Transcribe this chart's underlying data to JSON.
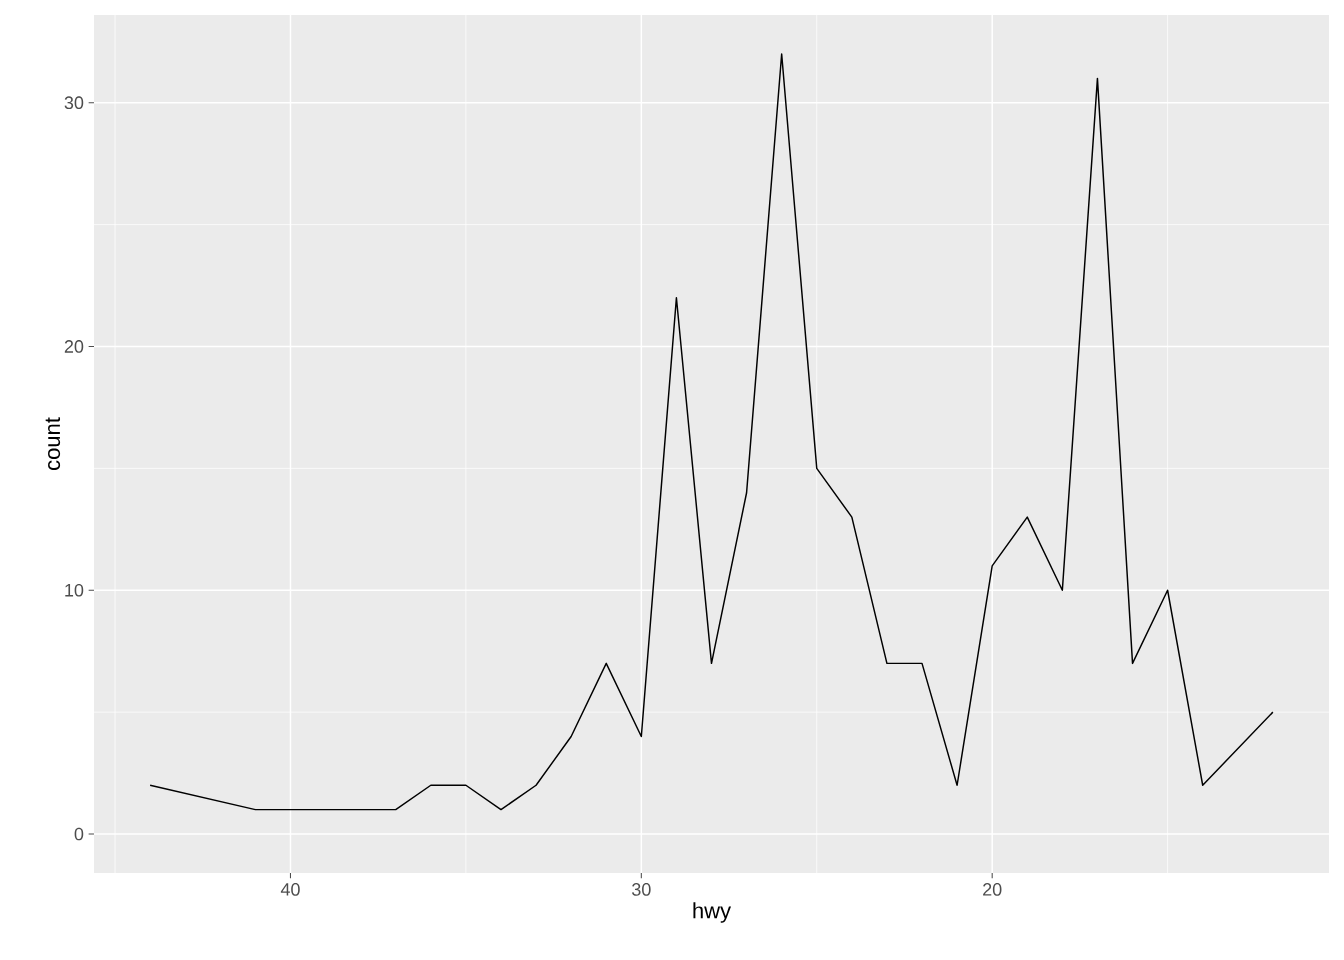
{
  "chart_data": {
    "type": "line",
    "xlabel": "hwy",
    "ylabel": "count",
    "x": [
      12,
      14,
      15,
      16,
      17,
      18,
      19,
      20,
      21,
      22,
      23,
      24,
      25,
      26,
      27,
      28,
      29,
      30,
      31,
      32,
      33,
      34,
      35,
      36,
      37,
      41,
      44
    ],
    "values": [
      5,
      2,
      10,
      7,
      31,
      10,
      13,
      11,
      2,
      7,
      7,
      13,
      15,
      32,
      14,
      7,
      22,
      4,
      7,
      4,
      2,
      1,
      2,
      2,
      1,
      1,
      2
    ],
    "color": "#000000",
    "line_style": "solid",
    "marker": "none",
    "xlim": [
      45.6,
      10.4
    ],
    "ylim": [
      -1.6,
      33.6
    ],
    "xticks": [
      {
        "value": 45,
        "label": null
      },
      40,
      {
        "value": 35,
        "label": null
      },
      30,
      {
        "value": 25,
        "label": null
      },
      20,
      {
        "value": 15,
        "label": null
      }
    ],
    "yticks": [
      0,
      {
        "value": 5,
        "label": null
      },
      10,
      {
        "value": 15,
        "label": null
      },
      20,
      {
        "value": 25,
        "label": null
      },
      30
    ],
    "grid": true
  }
}
